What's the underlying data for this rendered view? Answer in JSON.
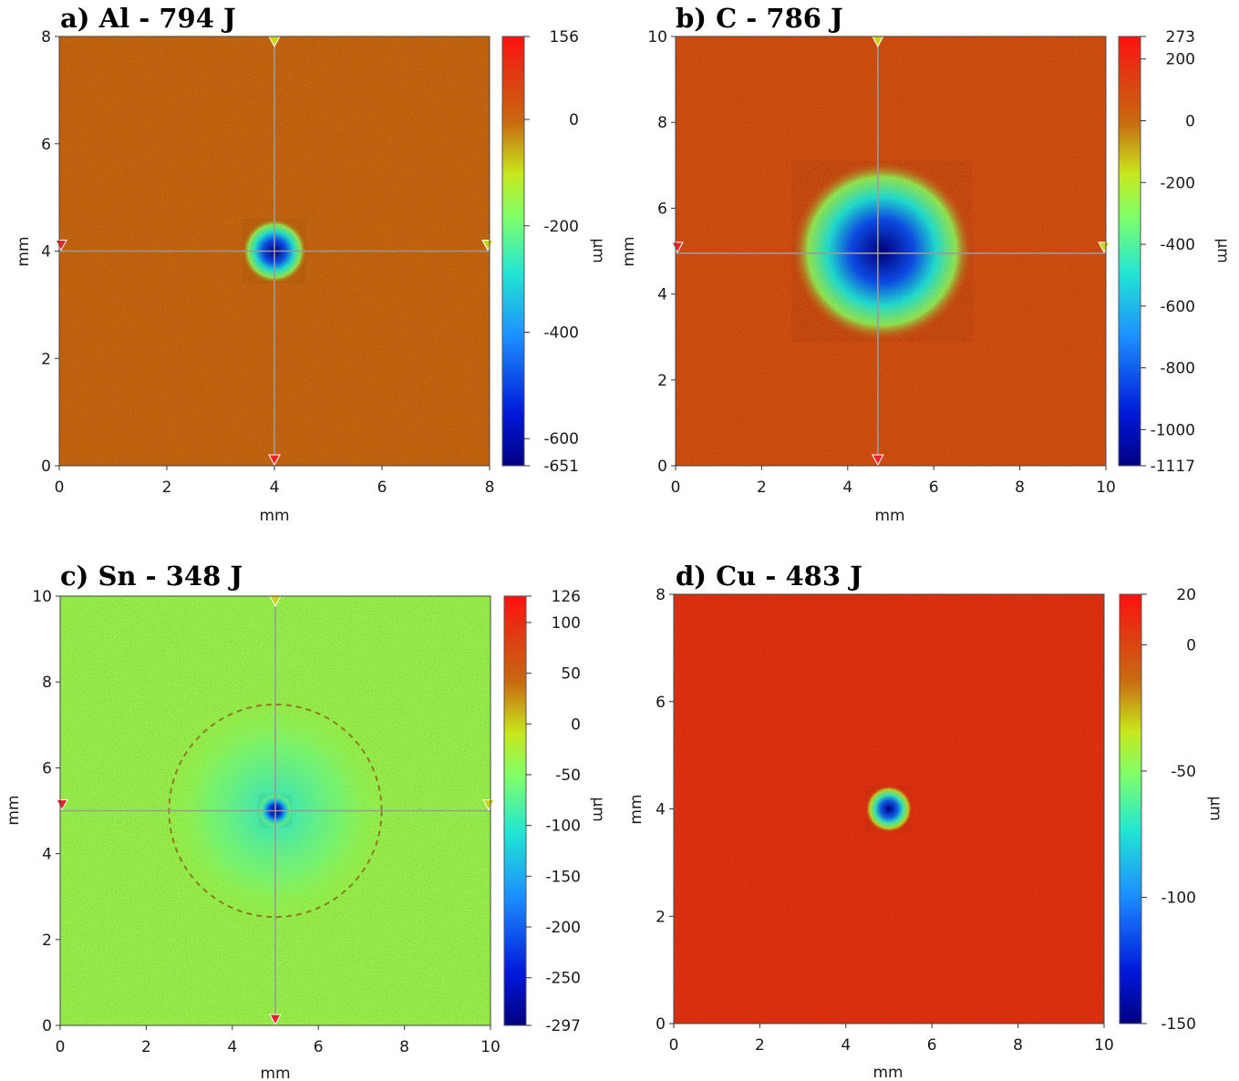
{
  "chart_data": [
    {
      "type": "heatmap",
      "title": "a) Al - 794 J",
      "xlabel": "mm",
      "ylabel": "mm",
      "colorbar_label": "µm",
      "xlim": [
        0,
        8
      ],
      "ylim": [
        0,
        8
      ],
      "xticks": [
        0,
        2,
        4,
        6,
        8
      ],
      "yticks": [
        0,
        2,
        4,
        6,
        8
      ],
      "zlim": [
        -651,
        156
      ],
      "colorbar_ticks": [
        156,
        0,
        -200,
        -400,
        -600,
        -651
      ],
      "background_level": -2,
      "crater": {
        "center": [
          4,
          4
        ],
        "radius": 0.6,
        "depth": -651
      },
      "crosshair": {
        "x": 4,
        "y": 4
      }
    },
    {
      "type": "heatmap",
      "title": "b) C - 786 J",
      "xlabel": "mm",
      "ylabel": "mm",
      "colorbar_label": "µm",
      "xlim": [
        0,
        10
      ],
      "ylim": [
        0,
        10
      ],
      "xticks": [
        0,
        2,
        4,
        6,
        8,
        10
      ],
      "yticks": [
        0,
        2,
        4,
        6,
        8,
        10
      ],
      "zlim": [
        -1117,
        273
      ],
      "colorbar_ticks": [
        273,
        200,
        0,
        -200,
        -400,
        -600,
        -800,
        -1000,
        -1117
      ],
      "background_level": 80,
      "crater": {
        "center": [
          4.8,
          5
        ],
        "radius": 2.1,
        "depth": -1117
      },
      "crosshair": {
        "x": 4.7,
        "y": 4.95
      }
    },
    {
      "type": "heatmap",
      "title": "c) Sn - 348 J",
      "xlabel": "mm",
      "ylabel": "mm",
      "colorbar_label": "µm",
      "xlim": [
        0,
        10
      ],
      "ylim": [
        0,
        10
      ],
      "xticks": [
        0,
        2,
        4,
        6,
        8,
        10
      ],
      "yticks": [
        0,
        2,
        4,
        6,
        8,
        10
      ],
      "zlim": [
        -297,
        126
      ],
      "colorbar_ticks": [
        126,
        100,
        50,
        0,
        -50,
        -100,
        -150,
        -200,
        -250,
        -297
      ],
      "background_level": -35,
      "crater": {
        "center": [
          5,
          5
        ],
        "radius": 0.4,
        "depth": -297
      },
      "halo": {
        "radius": 2.6,
        "level": -110
      },
      "crosshair": {
        "x": 5,
        "y": 5
      }
    },
    {
      "type": "heatmap",
      "title": "d) Cu - 483 J",
      "xlabel": "mm",
      "ylabel": "mm",
      "colorbar_label": "µm",
      "xlim": [
        0,
        10
      ],
      "ylim": [
        0,
        8
      ],
      "xticks": [
        0,
        2,
        4,
        6,
        8,
        10
      ],
      "yticks": [
        0,
        2,
        4,
        6,
        8
      ],
      "zlim": [
        -150,
        20
      ],
      "colorbar_ticks": [
        20,
        0,
        -50,
        -100,
        -150
      ],
      "background_level": 8,
      "crater": {
        "center": [
          5,
          4
        ],
        "radius": 0.55,
        "depth": -150
      }
    }
  ]
}
